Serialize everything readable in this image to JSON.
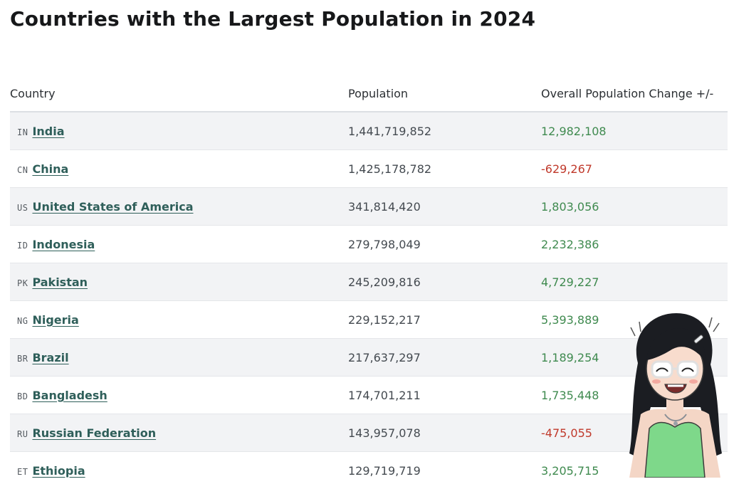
{
  "page": {
    "title": "Countries with the Largest Population in 2024"
  },
  "table": {
    "headers": [
      "Country",
      "Population",
      "Overall Population Change +/-"
    ],
    "rows": [
      {
        "code": "IN",
        "country": "India",
        "population": "1,441,719,852",
        "change": "12,982,108",
        "trend": "positive"
      },
      {
        "code": "CN",
        "country": "China",
        "population": "1,425,178,782",
        "change": "-629,267",
        "trend": "negative"
      },
      {
        "code": "US",
        "country": "United States of America",
        "population": "341,814,420",
        "change": "1,803,056",
        "trend": "positive"
      },
      {
        "code": "ID",
        "country": "Indonesia",
        "population": "279,798,049",
        "change": "2,232,386",
        "trend": "positive"
      },
      {
        "code": "PK",
        "country": "Pakistan",
        "population": "245,209,816",
        "change": "4,729,227",
        "trend": "positive"
      },
      {
        "code": "NG",
        "country": "Nigeria",
        "population": "229,152,217",
        "change": "5,393,889",
        "trend": "positive"
      },
      {
        "code": "BR",
        "country": "Brazil",
        "population": "217,637,297",
        "change": "1,189,254",
        "trend": "positive"
      },
      {
        "code": "BD",
        "country": "Bangladesh",
        "population": "174,701,211",
        "change": "1,735,448",
        "trend": "positive"
      },
      {
        "code": "RU",
        "country": "Russian Federation",
        "population": "143,957,078",
        "change": "-475,055",
        "trend": "negative"
      },
      {
        "code": "ET",
        "country": "Ethiopia",
        "population": "129,719,719",
        "change": "3,205,715",
        "trend": "positive"
      }
    ]
  },
  "colors": {
    "positive": "#3f8a4f",
    "negative": "#c0392b",
    "link": "#2f5f5a",
    "row_stripe": "#f2f3f5"
  },
  "decoration": {
    "mascot": "cartoon-girl-illustration"
  }
}
